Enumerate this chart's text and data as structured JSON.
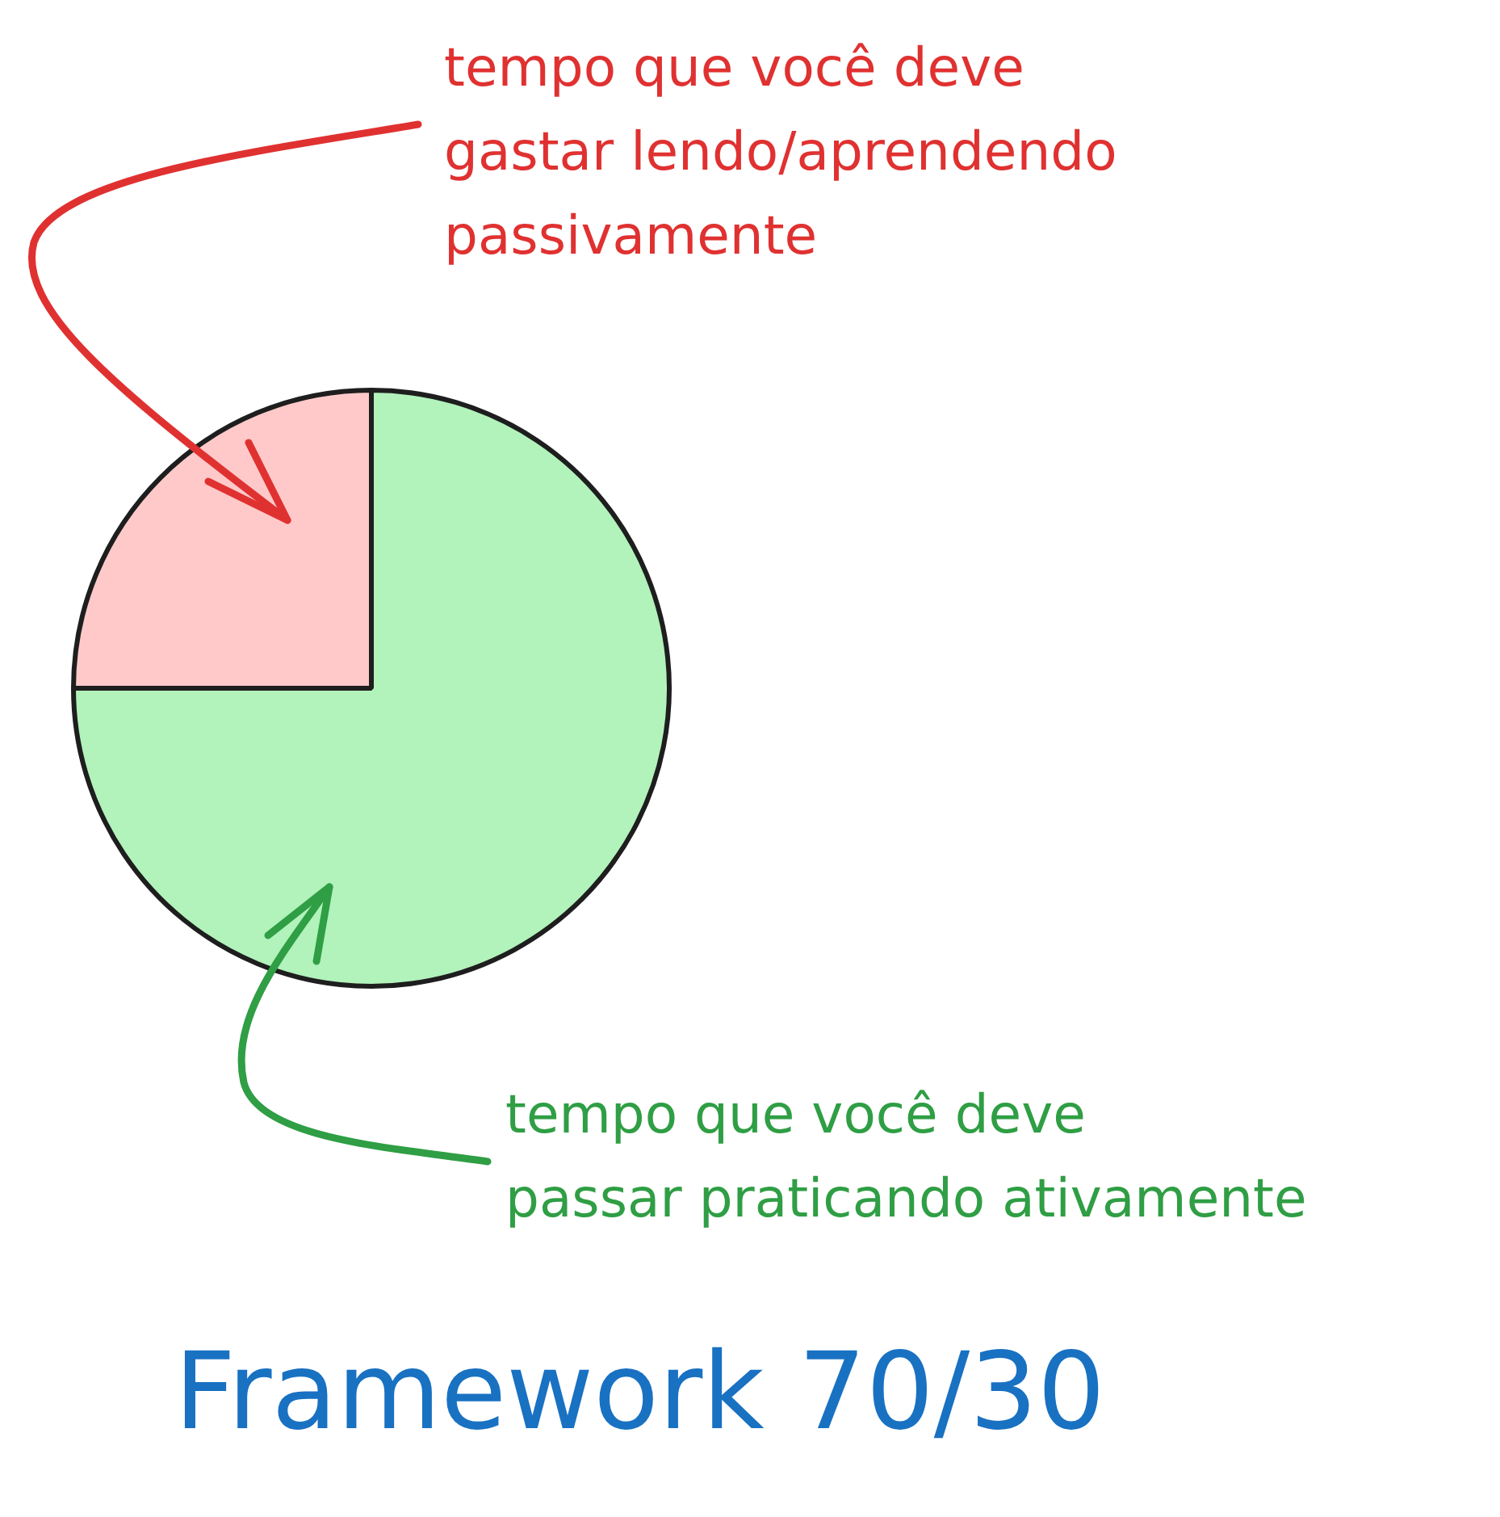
{
  "chart_data": {
    "type": "pie",
    "title": "Framework 70/30",
    "categories": [
      "tempo que você deve\ngastar lendo/aprendendo\npassivamente",
      "tempo que você deve\npassar praticando ativamente"
    ],
    "values": [
      25,
      75
    ],
    "colors": [
      "#ffc9c9",
      "#b2f2bb"
    ],
    "legend": false
  }
}
